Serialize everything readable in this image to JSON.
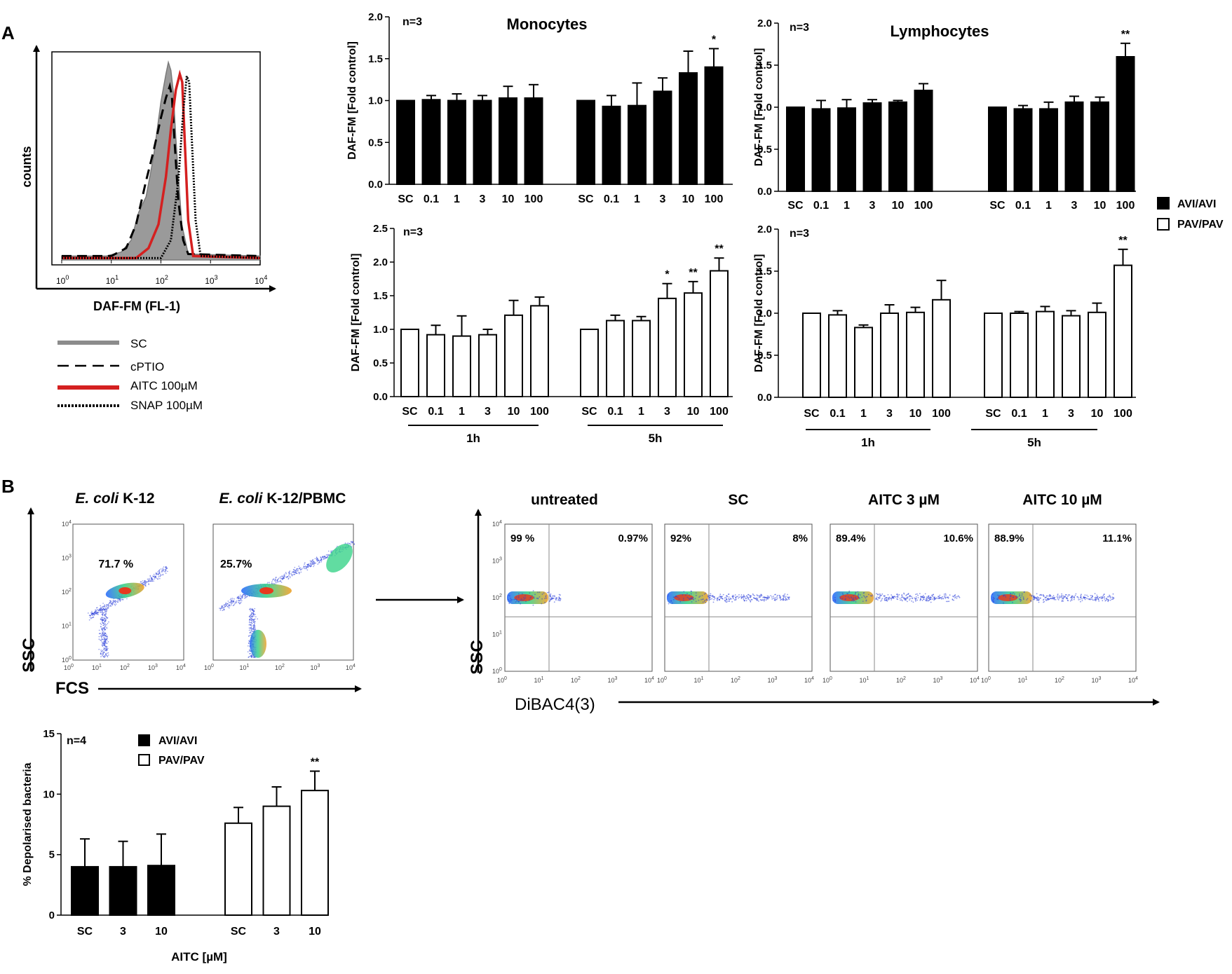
{
  "panel_labels": {
    "a": "A",
    "b": "B"
  },
  "chart_data": [
    {
      "id": "hist",
      "type": "line",
      "title": "",
      "xlabel": "DAF-FM (FL-1)",
      "ylabel": "counts",
      "x_ticks": [
        "10",
        "10",
        "10",
        "10",
        "10"
      ],
      "x_tick_exps": [
        "0",
        "1",
        "2",
        "3",
        "4"
      ],
      "xlim_log": [
        0,
        4
      ],
      "series": [
        {
          "name": "SC",
          "style": "fill-gray",
          "color": "#8c8c8c",
          "x": [
            0,
            0.9,
            1.2,
            1.4,
            1.55,
            1.7,
            1.85,
            2.0,
            2.1,
            2.15,
            2.2,
            2.25,
            2.3,
            2.42,
            2.55,
            4
          ],
          "y": [
            0.02,
            0.02,
            0.04,
            0.1,
            0.24,
            0.32,
            0.52,
            0.8,
            0.94,
            1.0,
            0.96,
            0.85,
            0.62,
            0.18,
            0.03,
            0.02
          ]
        },
        {
          "name": "cPTIO",
          "style": "dashed",
          "color": "#000000",
          "x": [
            0,
            1.0,
            1.3,
            1.5,
            1.7,
            1.85,
            2.0,
            2.1,
            2.18,
            2.22,
            2.27,
            2.35,
            2.45,
            2.55,
            4
          ],
          "y": [
            0.02,
            0.02,
            0.06,
            0.18,
            0.4,
            0.55,
            0.72,
            0.82,
            0.88,
            0.83,
            0.62,
            0.3,
            0.1,
            0.03,
            0.02
          ]
        },
        {
          "name": "AITC 100µM",
          "style": "red",
          "color": "#d42020",
          "x": [
            0,
            1.5,
            1.75,
            1.95,
            2.1,
            2.2,
            2.3,
            2.38,
            2.43,
            2.48,
            2.55,
            2.65,
            4
          ],
          "y": [
            0.01,
            0.01,
            0.06,
            0.18,
            0.42,
            0.66,
            0.86,
            0.94,
            0.9,
            0.6,
            0.2,
            0.02,
            0.01
          ]
        },
        {
          "name": "SNAP 100µM",
          "style": "dotted",
          "color": "#000000",
          "x": [
            0,
            2.0,
            2.2,
            2.35,
            2.45,
            2.52,
            2.57,
            2.62,
            2.7,
            2.8,
            4
          ],
          "y": [
            0.01,
            0.01,
            0.1,
            0.4,
            0.75,
            0.93,
            0.9,
            0.62,
            0.2,
            0.02,
            0.01
          ]
        }
      ]
    },
    {
      "id": "mono_avi",
      "type": "bar",
      "title": "Monocytes",
      "annotation": "n=3",
      "ylabel": "DAF-FM [Fold control]",
      "ylim": [
        0,
        2.0
      ],
      "y_ticks": [
        "0.0",
        "0.5",
        "1.0",
        "1.5",
        "2.0"
      ],
      "y_tick_values": [
        0,
        0.5,
        1.0,
        1.5,
        2.0
      ],
      "fill": "black",
      "categories": [
        "SC",
        "0.1",
        "1",
        "3",
        "10",
        "100"
      ],
      "groups": [
        {
          "label": "",
          "values": [
            1.0,
            1.01,
            1.0,
            1.0,
            1.03,
            1.03
          ],
          "errors": [
            0,
            0.05,
            0.08,
            0.06,
            0.14,
            0.16
          ],
          "sig": [
            "",
            "",
            "",
            "",
            "",
            ""
          ]
        },
        {
          "label": "",
          "values": [
            1.0,
            0.93,
            0.94,
            1.11,
            1.33,
            1.4
          ],
          "errors": [
            0,
            0.13,
            0.27,
            0.16,
            0.26,
            0.22
          ],
          "sig": [
            "",
            "",
            "",
            "",
            "",
            "*"
          ]
        }
      ]
    },
    {
      "id": "lymph_avi",
      "type": "bar",
      "title": "Lymphocytes",
      "annotation": "n=3",
      "ylabel": "DAF-FM [Fold control]",
      "ylim": [
        0,
        2.0
      ],
      "y_ticks": [
        "0.0",
        "0.5",
        "1.0",
        "1.5",
        "2.0"
      ],
      "y_tick_values": [
        0,
        0.5,
        1.0,
        1.5,
        2.0
      ],
      "fill": "black",
      "categories": [
        "SC",
        "0.1",
        "1",
        "3",
        "10",
        "100"
      ],
      "groups": [
        {
          "label": "",
          "values": [
            1.0,
            0.98,
            0.99,
            1.05,
            1.06,
            1.2
          ],
          "errors": [
            0,
            0.1,
            0.1,
            0.04,
            0.02,
            0.08
          ],
          "sig": [
            "",
            "",
            "",
            "",
            "",
            ""
          ]
        },
        {
          "label": "",
          "values": [
            1.0,
            0.98,
            0.98,
            1.06,
            1.06,
            1.6
          ],
          "errors": [
            0,
            0.04,
            0.08,
            0.07,
            0.06,
            0.16
          ],
          "sig": [
            "",
            "",
            "",
            "",
            "",
            "**"
          ]
        }
      ]
    },
    {
      "id": "mono_pav",
      "type": "bar",
      "title": "",
      "annotation": "n=3",
      "ylabel": "DAF-FM [Fold control]",
      "ylim": [
        0,
        2.5
      ],
      "y_ticks": [
        "0.0",
        "0.5",
        "1.0",
        "1.5",
        "2.0",
        "2.5"
      ],
      "y_tick_values": [
        0,
        0.5,
        1.0,
        1.5,
        2.0,
        2.5
      ],
      "fill": "white",
      "categories": [
        "SC",
        "0.1",
        "1",
        "3",
        "10",
        "100"
      ],
      "groups": [
        {
          "label": "1h",
          "values": [
            1.0,
            0.92,
            0.9,
            0.92,
            1.21,
            1.35
          ],
          "errors": [
            0,
            0.14,
            0.3,
            0.08,
            0.22,
            0.13
          ],
          "sig": [
            "",
            "",
            "",
            "",
            "",
            ""
          ]
        },
        {
          "label": "5h",
          "values": [
            1.0,
            1.13,
            1.13,
            1.46,
            1.54,
            1.87
          ],
          "errors": [
            0,
            0.08,
            0.06,
            0.22,
            0.17,
            0.19
          ],
          "sig": [
            "",
            "",
            "",
            "*",
            "**",
            "**"
          ]
        }
      ]
    },
    {
      "id": "lymph_pav",
      "type": "bar",
      "title": "",
      "annotation": "n=3",
      "ylabel": "DAF-FM [Fold control]",
      "ylim": [
        0,
        2.0
      ],
      "y_ticks": [
        "0.0",
        "0.5",
        "1.0",
        "1.5",
        "2.0"
      ],
      "y_tick_values": [
        0,
        0.5,
        1.0,
        1.5,
        2.0
      ],
      "fill": "white",
      "categories": [
        "SC",
        "0.1",
        "1",
        "3",
        "10",
        "100"
      ],
      "groups": [
        {
          "label": "1h",
          "values": [
            1.0,
            0.98,
            0.83,
            1.0,
            1.01,
            1.16
          ],
          "errors": [
            0,
            0.05,
            0.03,
            0.1,
            0.06,
            0.23
          ],
          "sig": [
            "",
            "",
            "",
            "",
            "",
            ""
          ]
        },
        {
          "label": "5h",
          "values": [
            1.0,
            1.0,
            1.02,
            0.97,
            1.01,
            1.57
          ],
          "errors": [
            0,
            0.02,
            0.06,
            0.06,
            0.11,
            0.19
          ],
          "sig": [
            "",
            "",
            "",
            "",
            "",
            "**"
          ]
        }
      ]
    },
    {
      "id": "depol",
      "type": "bar",
      "title": "",
      "annotation": "n=4",
      "xlabel": "AITC [µM]",
      "ylabel": "% Depolarised bacteria",
      "ylim": [
        0,
        15
      ],
      "y_ticks": [
        "0",
        "5",
        "10",
        "15"
      ],
      "y_tick_values": [
        0,
        5,
        10,
        15
      ],
      "categories": [
        "SC",
        "3",
        "10"
      ],
      "groups": [
        {
          "label": "AVI/AVI",
          "fill": "black",
          "values": [
            4.0,
            4.0,
            4.1
          ],
          "errors": [
            2.3,
            2.1,
            2.6
          ],
          "sig": [
            "",
            "",
            ""
          ]
        },
        {
          "label": "PAV/PAV",
          "fill": "white",
          "values": [
            7.6,
            9.0,
            10.3
          ],
          "errors": [
            1.3,
            1.6,
            1.6
          ],
          "sig": [
            "",
            "",
            "**"
          ]
        }
      ]
    },
    {
      "id": "scatter_gate",
      "type": "scatter",
      "title": "",
      "xlabel": "FCS",
      "ylabel": "SSC",
      "x_ticks": [
        "10",
        "10",
        "10",
        "10",
        "10"
      ],
      "x_tick_exps": [
        "0",
        "1",
        "2",
        "3",
        "4"
      ],
      "y_ticks": [
        "10",
        "10",
        "10",
        "10",
        "10"
      ],
      "y_tick_exps": [
        "0",
        "1",
        "2",
        "3",
        "4"
      ],
      "plots": [
        {
          "title_italic": "E. coli",
          "title_rest": " K-12",
          "percent": "71.7 %"
        },
        {
          "title_italic": "E. coli",
          "title_rest": " K-12/PBMC",
          "percent": "25.7%"
        }
      ]
    },
    {
      "id": "scatter_dibac",
      "type": "scatter",
      "title": "",
      "xlabel": "DiBAC4(3)",
      "ylabel": "SSC",
      "x_ticks": [
        "10",
        "10",
        "10",
        "10",
        "10"
      ],
      "x_tick_exps": [
        "0",
        "1",
        "2",
        "3",
        "4"
      ],
      "y_ticks": [
        "10",
        "10",
        "10",
        "10",
        "10"
      ],
      "y_tick_exps": [
        "0",
        "1",
        "2",
        "3",
        "4"
      ],
      "plots": [
        {
          "title": "untreated",
          "left_pct": "99 %",
          "right_pct": "0.97%"
        },
        {
          "title": "SC",
          "left_pct": "92%",
          "right_pct": "8%"
        },
        {
          "title": "AITC  3 µM",
          "left_pct": "89.4%",
          "right_pct": "10.6%"
        },
        {
          "title": "AITC  10 µM",
          "left_pct": "88.9%",
          "right_pct": "11.1%"
        }
      ]
    }
  ],
  "legend_top": {
    "items": [
      {
        "label": "AVI/AVI",
        "fill": "black"
      },
      {
        "label": "PAV/PAV",
        "fill": "white"
      }
    ]
  },
  "legend_hist": {
    "items": [
      {
        "label": "SC"
      },
      {
        "label": "cPTIO"
      },
      {
        "label": "AITC  100µM"
      },
      {
        "label": "SNAP  100µM"
      }
    ]
  }
}
